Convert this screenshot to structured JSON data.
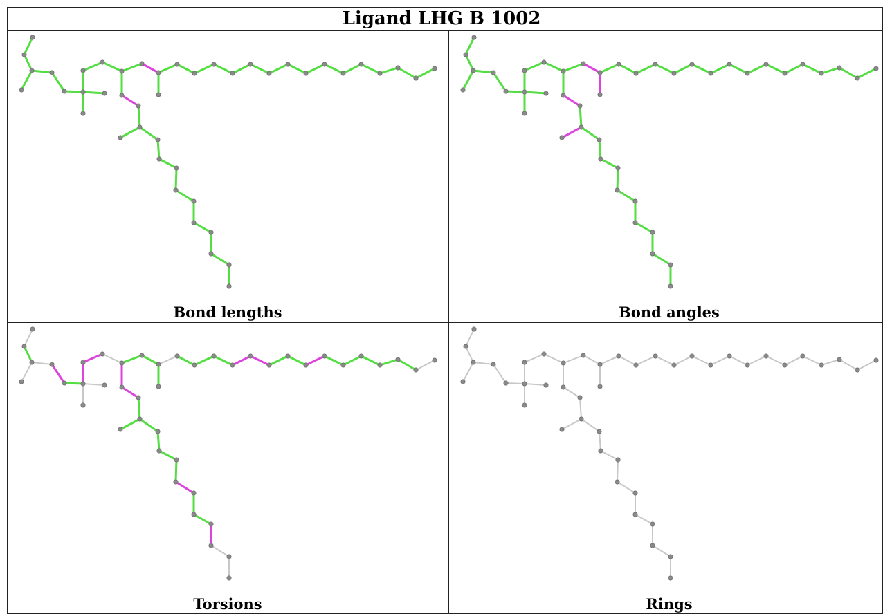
{
  "title": "Ligand LHG B 1002",
  "panels": [
    {
      "id": "bond-lengths",
      "label": "Bond lengths"
    },
    {
      "id": "bond-angles",
      "label": "Bond angles"
    },
    {
      "id": "torsions",
      "label": "Torsions"
    },
    {
      "id": "rings",
      "label": "Rings"
    }
  ],
  "colors": {
    "ok": "#55dd44",
    "outlier": "#dd44dd",
    "unassessed": "#c8c8c8",
    "atom": "#8a8a8a",
    "grid": "#222222"
  }
}
